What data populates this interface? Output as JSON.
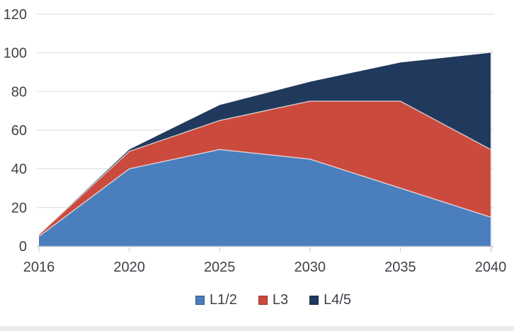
{
  "chart_data": {
    "type": "area",
    "stacked": true,
    "title": "",
    "xlabel": "",
    "ylabel": "",
    "categories": [
      "2016",
      "2020",
      "2025",
      "2030",
      "2035",
      "2040"
    ],
    "series": [
      {
        "name": "L1/2",
        "color": "#4A7EBD",
        "values": [
          5,
          40,
          50,
          45,
          30,
          15
        ]
      },
      {
        "name": "L3",
        "color": "#CB4A3E",
        "values": [
          1,
          9,
          15,
          30,
          45,
          35
        ]
      },
      {
        "name": "L4/5",
        "color": "#20395C",
        "values": [
          0,
          1,
          8,
          10,
          20,
          50
        ]
      }
    ],
    "stacked_totals": [
      6,
      50,
      73,
      85,
      95,
      100
    ],
    "y_axis": {
      "min": 0,
      "max": 120,
      "step": 20,
      "ticks": [
        "0",
        "20",
        "40",
        "60",
        "80",
        "100",
        "120"
      ]
    },
    "grid": true,
    "legend_position": "bottom",
    "colors": {
      "grid_line": "#DBDBE2",
      "axis_line": "#C6C6D0",
      "tick_mark": "#C6C6D0",
      "label_text": "#404048",
      "band_separator": "rgba(255,255,255,0.65)",
      "background": "#FFFFFF",
      "bottom_strip": "#E9E9EE"
    }
  }
}
